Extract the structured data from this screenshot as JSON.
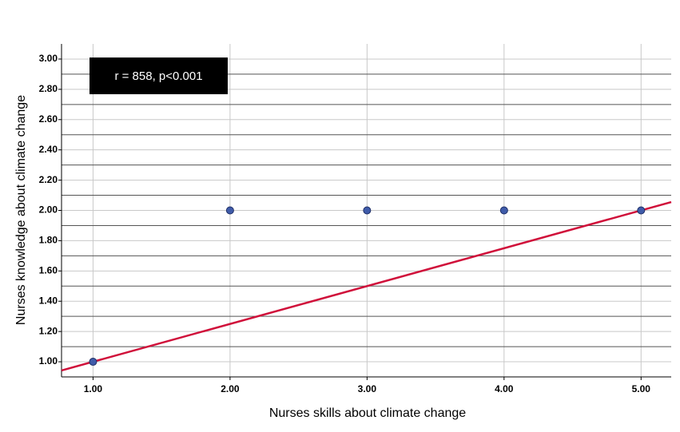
{
  "chart_data": {
    "type": "scatter",
    "x_label": "Nurses skills about climate change",
    "y_label": "Nurses knowledge about climate change",
    "annotation": "r = 858, p<0.001",
    "x": [
      1,
      2,
      3,
      4,
      5
    ],
    "values": [
      1,
      2,
      2,
      2,
      2
    ],
    "color": "#3f5ba9",
    "fit": {
      "slope": 0.25,
      "intercept": 0.75,
      "color": "#d0103a"
    },
    "xlim": [
      0.77,
      5.22
    ],
    "ylim": [
      0.9,
      3.1
    ],
    "xticks": [
      {
        "value": 1,
        "label": "1.00"
      },
      {
        "value": 2,
        "label": "2.00"
      },
      {
        "value": 3,
        "label": "3.00"
      },
      {
        "value": 4,
        "label": "4.00"
      },
      {
        "value": 5,
        "label": "5.00"
      }
    ],
    "yticks": [
      {
        "value": 1,
        "label": "1.00"
      },
      {
        "value": 1.2,
        "label": "1.20"
      },
      {
        "value": 1.4,
        "label": "1.40"
      },
      {
        "value": 1.6,
        "label": "1.60"
      },
      {
        "value": 1.8,
        "label": "1.80"
      },
      {
        "value": 2,
        "label": "2.00"
      },
      {
        "value": 2.2,
        "label": "2.20"
      },
      {
        "value": 2.4,
        "label": "2.40"
      },
      {
        "value": 2.6,
        "label": "2.60"
      },
      {
        "value": 2.8,
        "label": "2.80"
      },
      {
        "value": 3,
        "label": "3.00"
      }
    ],
    "yminor": [
      0.9,
      1.1,
      1.3,
      1.5,
      1.7,
      1.9,
      2.1,
      2.3,
      2.5,
      2.7,
      2.9
    ],
    "grid": true
  }
}
